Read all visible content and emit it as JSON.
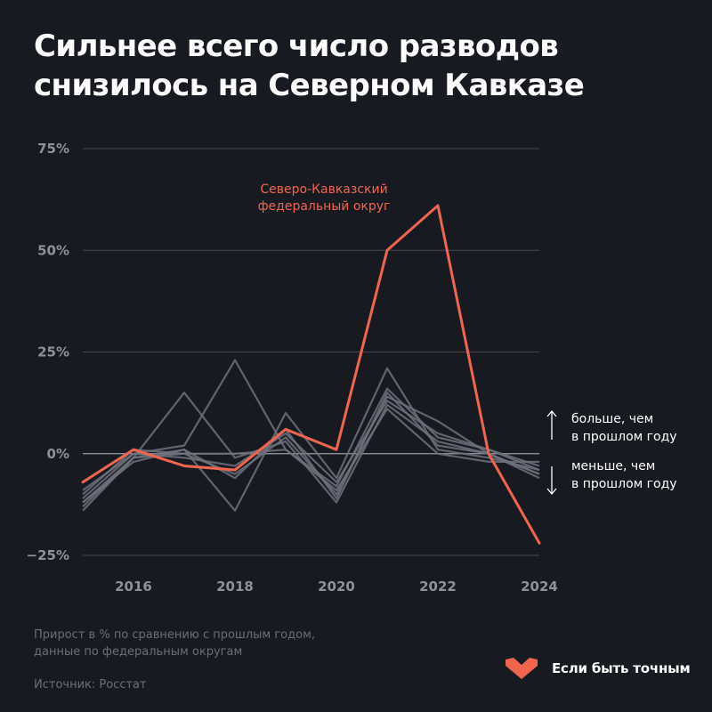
{
  "header": {
    "title_line1": "Сильнее всего число разводов",
    "title_line2": "снизилось на Северном Кавказе"
  },
  "chart_data": {
    "type": "line",
    "x": [
      2015,
      2016,
      2017,
      2018,
      2019,
      2020,
      2021,
      2022,
      2023,
      2024
    ],
    "xticks": [
      "2016",
      "2018",
      "2020",
      "2022",
      "2024"
    ],
    "yticks": [
      "75%",
      "50%",
      "25%",
      "0%",
      "−25%"
    ],
    "ylim": [
      -25,
      75
    ],
    "grid": true,
    "highlight": {
      "name": "Северо-Кавказский федеральный округ",
      "label_lines": [
        "Северо-Кавказский",
        "федеральный округ"
      ],
      "color": "#f1654f",
      "values": [
        -7,
        1,
        -3,
        -4,
        6,
        1,
        50,
        61,
        0,
        -22
      ]
    },
    "series": [
      {
        "color": "#6f727c",
        "values": [
          -14,
          -1,
          15,
          -1,
          3,
          -12,
          12,
          3,
          0,
          -5
        ]
      },
      {
        "color": "#6f727c",
        "values": [
          -9,
          0,
          2,
          23,
          1,
          -8,
          16,
          4,
          1,
          -3
        ]
      },
      {
        "color": "#6f727c",
        "values": [
          -12,
          -2,
          1,
          -14,
          10,
          -6,
          21,
          1,
          -1,
          -4
        ]
      },
      {
        "color": "#6f727c",
        "values": [
          -13,
          -1,
          0,
          -5,
          4,
          -10,
          14,
          8,
          0,
          -6
        ]
      },
      {
        "color": "#6f727c",
        "values": [
          -11,
          0,
          -1,
          -3,
          5,
          -7,
          13,
          5,
          1,
          -4
        ]
      },
      {
        "color": "#6f727c",
        "values": [
          -10,
          1,
          0,
          0,
          1,
          -9,
          11,
          0,
          -2,
          -2
        ]
      },
      {
        "color": "#6f727c",
        "values": [
          -12,
          -1,
          1,
          -6,
          6,
          -11,
          15,
          2,
          0,
          -5
        ]
      }
    ],
    "annotations": {
      "up_line1": "больше, чем",
      "up_line2": "в прошлом году",
      "down_line1": "меньше, чем",
      "down_line2": "в прошлом году"
    }
  },
  "footer": {
    "note_line1": "Прирост в % по сравнению с прошлым годом,",
    "note_line2": "данные по федеральным округам",
    "source": "Источник: Росстат",
    "brand": "Если быть точным",
    "brand_color": "#f1654f"
  }
}
